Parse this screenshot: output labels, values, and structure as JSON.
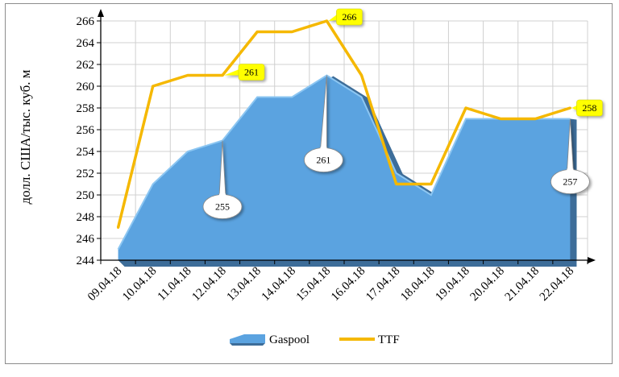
{
  "chart_data": {
    "type": "area",
    "categories": [
      "09.04.18",
      "10.04.18",
      "11.04.18",
      "12.04.18",
      "13.04.18",
      "14.04.18",
      "15.04.18",
      "16.04.18",
      "17.04.18",
      "18.04.18",
      "19.04.18",
      "20.04.18",
      "21.04.18",
      "22.04.18"
    ],
    "series": [
      {
        "name": "Gaspool",
        "render": "area",
        "values": [
          245,
          251,
          254,
          255,
          259,
          259,
          261,
          259,
          252,
          250,
          257,
          257,
          257,
          257
        ]
      },
      {
        "name": "TTF",
        "render": "line",
        "values": [
          247,
          260,
          261,
          261,
          265,
          265,
          266,
          261,
          251,
          251,
          258,
          257,
          257,
          258
        ]
      }
    ],
    "ylabel": "долл. США/тыс. куб. м",
    "ylim": [
      244,
      266
    ],
    "ytick_step": 2,
    "yticks": [
      "244",
      "246",
      "248",
      "250",
      "252",
      "254",
      "256",
      "258",
      "260",
      "262",
      "264",
      "266"
    ],
    "grid": true,
    "legend_position": "bottom",
    "annotations": [
      {
        "series": "Gaspool",
        "index": 3,
        "text": "255"
      },
      {
        "series": "Gaspool",
        "index": 6,
        "text": "261"
      },
      {
        "series": "Gaspool",
        "index": 13,
        "text": "257"
      },
      {
        "series": "TTF",
        "index": 3,
        "text": "261"
      },
      {
        "series": "TTF",
        "index": 6,
        "text": "266"
      },
      {
        "series": "TTF",
        "index": 13,
        "text": "258"
      }
    ]
  },
  "colors": {
    "area_fill": "#5ba3e0",
    "area_shadow": "#3d6d99",
    "line": "#f5b800",
    "grid": "#d0d0d0",
    "axis": "#000000",
    "label_box": "#ffff00"
  }
}
